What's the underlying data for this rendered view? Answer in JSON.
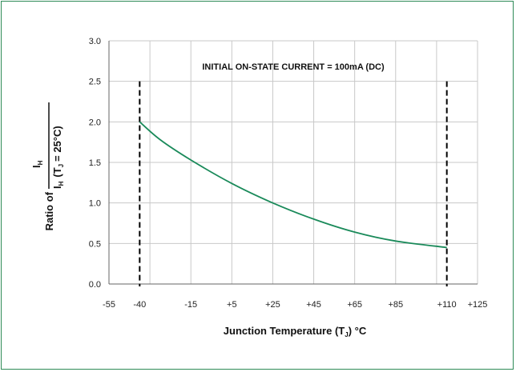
{
  "chart_data": {
    "type": "line",
    "annotation": "INITIAL ON-STATE CURRENT = 100mA (DC)",
    "xlabel": {
      "main": "Junction Temperature (T",
      "sub": "J",
      "tail": ") °C"
    },
    "ylabel": {
      "prefix": "Ratio of",
      "num_main": "I",
      "num_sub": "H",
      "den_main": "I",
      "den_sub": "H",
      "den_cond": "(T",
      "den_cond_sub": "J",
      "den_cond_tail": "= 25°C)"
    },
    "x_ticks": [
      {
        "value": -55,
        "label": "-55"
      },
      {
        "value": -40,
        "label": "-40"
      },
      {
        "value": -15,
        "label": "-15"
      },
      {
        "value": 5,
        "label": "+5"
      },
      {
        "value": 25,
        "label": "+25"
      },
      {
        "value": 45,
        "label": "+45"
      },
      {
        "value": 65,
        "label": "+65"
      },
      {
        "value": 85,
        "label": "+85"
      },
      {
        "value": 110,
        "label": "+110"
      },
      {
        "value": 125,
        "label": "+125"
      }
    ],
    "x_gridlines": [
      -55,
      -35,
      -15,
      5,
      25,
      45,
      65,
      85,
      105,
      125
    ],
    "xlim": [
      -55,
      125
    ],
    "y_ticks": [
      {
        "value": 0.0,
        "label": "0.0"
      },
      {
        "value": 0.5,
        "label": "0.5"
      },
      {
        "value": 1.0,
        "label": "1.0"
      },
      {
        "value": 1.5,
        "label": "1.5"
      },
      {
        "value": 2.0,
        "label": "2.0"
      },
      {
        "value": 2.5,
        "label": "2.5"
      },
      {
        "value": 3.0,
        "label": "3.0"
      }
    ],
    "ylim": [
      0,
      3.0
    ],
    "dashed_limits": [
      -40,
      110
    ],
    "series": [
      {
        "color": "#1a8a5a",
        "points": [
          {
            "x": -40,
            "y": 2.0
          },
          {
            "x": -30,
            "y": 1.78
          },
          {
            "x": -15,
            "y": 1.53
          },
          {
            "x": 5,
            "y": 1.24
          },
          {
            "x": 25,
            "y": 1.0
          },
          {
            "x": 45,
            "y": 0.8
          },
          {
            "x": 65,
            "y": 0.64
          },
          {
            "x": 85,
            "y": 0.53
          },
          {
            "x": 110,
            "y": 0.45
          }
        ]
      }
    ],
    "frame_color": "#2e8b57",
    "grid": true
  }
}
